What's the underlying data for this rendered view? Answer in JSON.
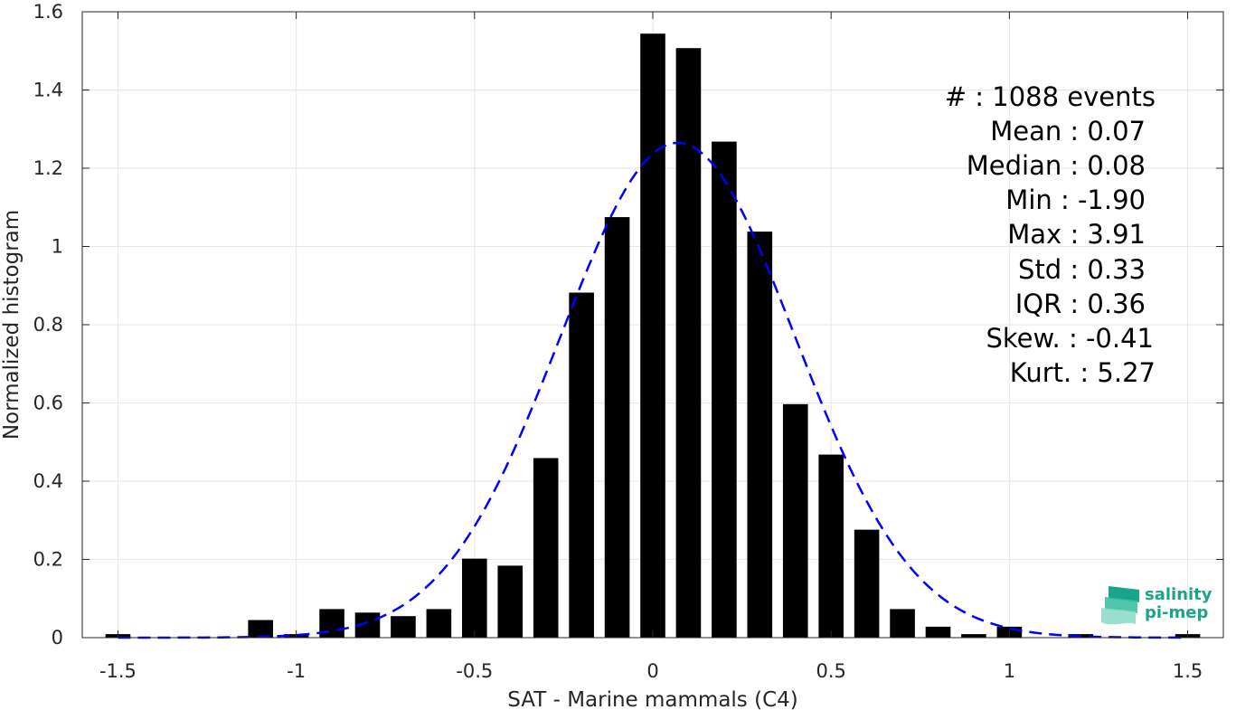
{
  "chart_data": {
    "type": "bar",
    "xlabel": "SAT - Marine mammals (C4)",
    "ylabel": "Normalized histogram",
    "xlim": [
      -1.6,
      1.6
    ],
    "ylim": [
      0,
      1.6
    ],
    "xticks": [
      -1.5,
      -1,
      -0.5,
      0,
      0.5,
      1,
      1.5
    ],
    "xtick_labels": [
      "-1.5",
      "-1",
      "-0.5",
      "0",
      "0.5",
      "1",
      "1.5"
    ],
    "yticks": [
      0,
      0.2,
      0.4,
      0.6,
      0.8,
      1,
      1.2,
      1.4,
      1.6
    ],
    "ytick_labels": [
      "0",
      "0.2",
      "0.4",
      "0.6",
      "0.8",
      "1",
      "1.2",
      "1.4",
      "1.6"
    ],
    "grid": true,
    "bar_width": 0.07,
    "bins": [
      {
        "x": -1.5,
        "y": 0.009
      },
      {
        "x": -1.1,
        "y": 0.045
      },
      {
        "x": -1.0,
        "y": 0.009
      },
      {
        "x": -0.9,
        "y": 0.073
      },
      {
        "x": -0.8,
        "y": 0.064
      },
      {
        "x": -0.7,
        "y": 0.055
      },
      {
        "x": -0.6,
        "y": 0.073
      },
      {
        "x": -0.5,
        "y": 0.202
      },
      {
        "x": -0.4,
        "y": 0.184
      },
      {
        "x": -0.3,
        "y": 0.459
      },
      {
        "x": -0.2,
        "y": 0.882
      },
      {
        "x": -0.1,
        "y": 1.075
      },
      {
        "x": 0.0,
        "y": 1.544
      },
      {
        "x": 0.1,
        "y": 1.507
      },
      {
        "x": 0.2,
        "y": 1.268
      },
      {
        "x": 0.3,
        "y": 1.038
      },
      {
        "x": 0.4,
        "y": 0.597
      },
      {
        "x": 0.5,
        "y": 0.468
      },
      {
        "x": 0.6,
        "y": 0.276
      },
      {
        "x": 0.7,
        "y": 0.073
      },
      {
        "x": 0.8,
        "y": 0.028
      },
      {
        "x": 0.9,
        "y": 0.009
      },
      {
        "x": 1.0,
        "y": 0.028
      },
      {
        "x": 1.2,
        "y": 0.009
      },
      {
        "x": 1.5,
        "y": 0.009
      }
    ],
    "fit_curve": {
      "style": "dashed",
      "color": "#0000ff",
      "mean": 0.07,
      "std": 0.33,
      "amplitude": 1.265,
      "x_range": [
        -1.5,
        1.5
      ]
    }
  },
  "stats": {
    "lines": [
      "#  : 1088 events",
      "Mean : 0.07",
      "Median : 0.08",
      "Min : -1.90",
      "Max : 3.91",
      "Std : 0.33",
      "IQR : 0.36",
      "Skew. : -0.41",
      "Kurt. : 5.27"
    ]
  },
  "logo": {
    "line1": "salinity",
    "line2": "pi-mep",
    "color": "#1aa58a"
  }
}
